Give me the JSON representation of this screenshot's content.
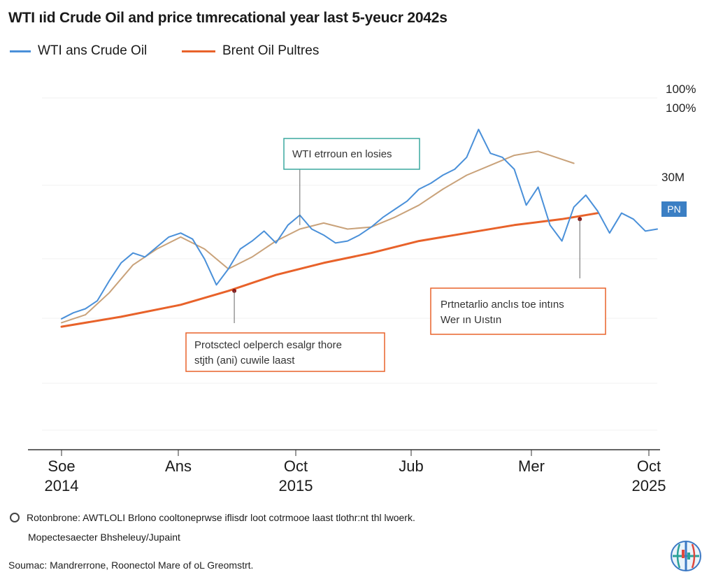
{
  "header": {
    "title": "WTI ıid Crude Oil and price tımrecational year last 5-yeucr 2042s"
  },
  "legend": [
    {
      "label": "WTI ans Crude Oil",
      "color": "#4a90d9",
      "icon": "line-swatch"
    },
    {
      "label": "Brent Oil Pultres",
      "color": "#e8622a",
      "icon": "line-swatch"
    }
  ],
  "chart_data": {
    "type": "line",
    "x_tick_labels": [
      {
        "line1": "Soe",
        "line2": "2014"
      },
      {
        "line1": "Ans",
        "line2": ""
      },
      {
        "line1": "Oct",
        "line2": "2015"
      },
      {
        "line1": "Jub",
        "line2": ""
      },
      {
        "line1": "Mer",
        "line2": ""
      },
      {
        "line1": "Oct",
        "line2": "2025"
      }
    ],
    "right_axis_labels": [
      "100%",
      "100%",
      "30M"
    ],
    "end_badge": "PN",
    "series": [
      {
        "name": "WTI ans Crude Oil",
        "color": "#4a90d9",
        "x": [
          0,
          2,
          4,
          6,
          8,
          10,
          12,
          14,
          16,
          18,
          20,
          22,
          24,
          26,
          28,
          30,
          32,
          34,
          36,
          38,
          40,
          42,
          44,
          46,
          48,
          50,
          52,
          54,
          56,
          58,
          60,
          62,
          64,
          66,
          68,
          70,
          72,
          74,
          76,
          78,
          80,
          82,
          84,
          86,
          88,
          90,
          92,
          94,
          96,
          98,
          100
        ],
        "values": [
          0.05,
          0.08,
          0.1,
          0.14,
          0.24,
          0.33,
          0.38,
          0.36,
          0.41,
          0.46,
          0.48,
          0.45,
          0.35,
          0.22,
          0.3,
          0.4,
          0.44,
          0.49,
          0.43,
          0.52,
          0.57,
          0.5,
          0.47,
          0.43,
          0.44,
          0.47,
          0.51,
          0.56,
          0.6,
          0.64,
          0.7,
          0.73,
          0.77,
          0.8,
          0.86,
          1.0,
          0.88,
          0.86,
          0.8,
          0.62,
          0.71,
          0.52,
          0.44,
          0.61,
          0.67,
          0.59,
          0.48,
          0.58,
          0.55,
          0.49,
          0.5
        ]
      },
      {
        "name": "Brent Oil Pultres (smoothed)",
        "color": "#c9a27a",
        "x": [
          0,
          4,
          8,
          12,
          16,
          20,
          24,
          28,
          32,
          36,
          40,
          44,
          48,
          52,
          56,
          60,
          64,
          68,
          72,
          76,
          80,
          84,
          86
        ],
        "values": [
          0.03,
          0.07,
          0.18,
          0.32,
          0.4,
          0.46,
          0.4,
          0.3,
          0.36,
          0.44,
          0.5,
          0.53,
          0.5,
          0.51,
          0.56,
          0.62,
          0.7,
          0.77,
          0.82,
          0.87,
          0.89,
          0.85,
          0.83
        ]
      },
      {
        "name": "Brent Oil Pultres",
        "color": "#e8622a",
        "x": [
          0,
          10,
          20,
          28,
          36,
          44,
          52,
          60,
          68,
          76,
          84,
          90
        ],
        "values": [
          0.01,
          0.06,
          0.12,
          0.19,
          0.27,
          0.33,
          0.38,
          0.44,
          0.48,
          0.52,
          0.55,
          0.58
        ]
      }
    ],
    "ylim": [
      0,
      1
    ],
    "grid": true,
    "annotations": [
      {
        "text": "WTI etrroun en losies",
        "x": 40,
        "y": 0.52,
        "box_color": "#3aa99f"
      },
      {
        "text_line1": "Protsctecl oelperch esalgr thore",
        "text_line2": "stjth (ani) cuwile laast",
        "x": 29,
        "y": 0.19,
        "box_color": "#e8622a"
      },
      {
        "text_line1": "Prtnetarlio anclıs toe intıns",
        "text_line2": "Wer ın Uıstın",
        "x": 87,
        "y": 0.55,
        "box_color": "#e8622a"
      }
    ]
  },
  "footer": {
    "note": "Rotonbrone: AWTLOLI Brlono cooltoneprwse iflisdr loot cotrmooe laast tlothr:nt thl lwoerk.",
    "note_icon": "circle-outline-icon",
    "sub_note": "Mopectesaecter Bhsheleuy/Jupaint",
    "source": "Soumac: Mandrerrone, Roonectol Mare of oL Greomstrt."
  },
  "logo": {
    "icon": "globe-logo-icon",
    "colors": [
      "#2aa198",
      "#3b78c4",
      "#e0483e"
    ]
  }
}
